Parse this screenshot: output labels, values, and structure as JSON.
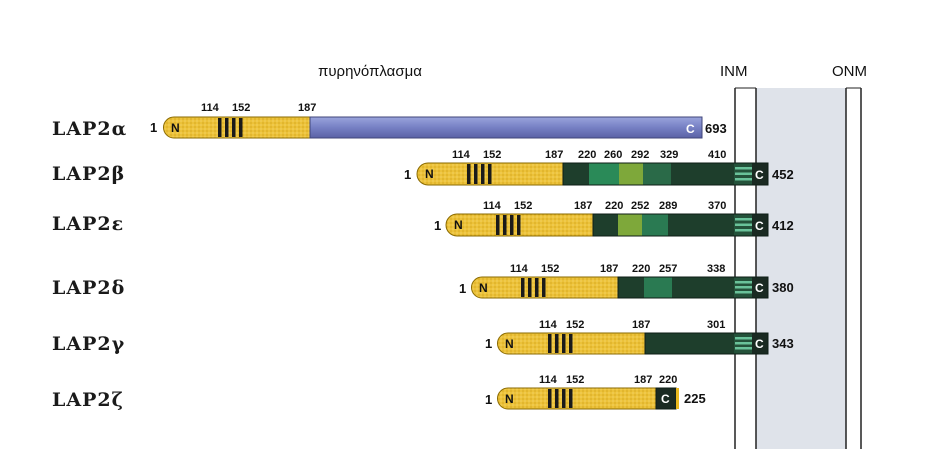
{
  "labels": {
    "nucleoplasm": "πυρηνόπλασμα",
    "inm": "INM",
    "onm": "ONM"
  },
  "colors": {
    "n_region": "#e8b820",
    "n_region_light": "#f4d874",
    "stripes": "#1a1a1a",
    "alpha_tail": "#7a86c8",
    "dark_green": "#1e3e2c",
    "mid_green": "#2a7a52",
    "bright_green": "#3aa26a",
    "lime_green": "#7ea83a",
    "tm_stripe": "#6ac29a",
    "membrane_fill": "#dfe3ea",
    "c_box": "#1a2a22"
  },
  "isoforms": [
    {
      "name": "LAP2α",
      "start": "1",
      "end": "693",
      "positions": [
        "114",
        "152",
        "187"
      ]
    },
    {
      "name": "LAP2β",
      "start": "1",
      "end": "452",
      "positions": [
        "114",
        "152",
        "187",
        "220",
        "260",
        "292",
        "329",
        "410"
      ]
    },
    {
      "name": "LAP2ε",
      "start": "1",
      "end": "412",
      "positions": [
        "114",
        "152",
        "187",
        "220",
        "252",
        "289",
        "370"
      ]
    },
    {
      "name": "LAP2δ",
      "start": "1",
      "end": "380",
      "positions": [
        "114",
        "152",
        "187",
        "220",
        "257",
        "338"
      ]
    },
    {
      "name": "LAP2γ",
      "start": "1",
      "end": "343",
      "positions": [
        "114",
        "152",
        "187",
        "301"
      ]
    },
    {
      "name": "LAP2ζ",
      "start": "1",
      "end": "225",
      "positions": [
        "114",
        "152",
        "187",
        "220"
      ]
    }
  ],
  "terminal_labels": {
    "n": "N",
    "c": "C"
  }
}
